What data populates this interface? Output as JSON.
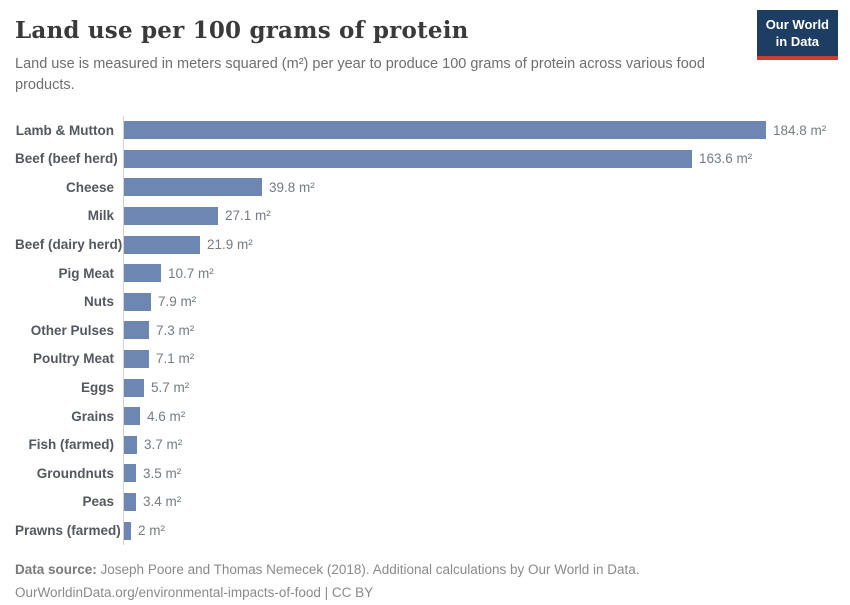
{
  "header": {
    "title": "Land use per 100 grams of protein",
    "subtitle": "Land use is measured in meters squared (m²) per year to produce 100 grams of protein across various food products.",
    "logo": {
      "line1": "Our World",
      "line2": "in Data",
      "background_color": "#1d3d63",
      "accent_color": "#cf3b32"
    }
  },
  "chart_data": {
    "type": "bar",
    "orientation": "horizontal",
    "title": "Land use per 100 grams of protein",
    "xlabel": "",
    "ylabel": "",
    "unit": "m²",
    "xlim": [
      0,
      190
    ],
    "grid": false,
    "legend": false,
    "bar_color": "#6e87b2",
    "categories": [
      "Lamb & Mutton",
      "Beef (beef herd)",
      "Cheese",
      "Milk",
      "Beef (dairy herd)",
      "Pig Meat",
      "Nuts",
      "Other Pulses",
      "Poultry Meat",
      "Eggs",
      "Grains",
      "Fish (farmed)",
      "Groundnuts",
      "Peas",
      "Prawns (farmed)"
    ],
    "values": [
      184.8,
      163.6,
      39.8,
      27.1,
      21.9,
      10.7,
      7.9,
      7.3,
      7.1,
      5.7,
      4.6,
      3.7,
      3.5,
      3.4,
      2
    ],
    "value_labels": [
      "184.8 m²",
      "163.6 m²",
      "39.8 m²",
      "27.1 m²",
      "21.9 m²",
      "10.7 m²",
      "7.9 m²",
      "7.3 m²",
      "7.1 m²",
      "5.7 m²",
      "4.6 m²",
      "3.7 m²",
      "3.5 m²",
      "3.4 m²",
      "2 m²"
    ]
  },
  "footer": {
    "source_label": "Data source:",
    "source_text": " Joseph Poore and Thomas Nemecek (2018). Additional calculations by Our World in Data.",
    "link_text": "OurWorldinData.org/environmental-impacts-of-food | CC BY"
  }
}
